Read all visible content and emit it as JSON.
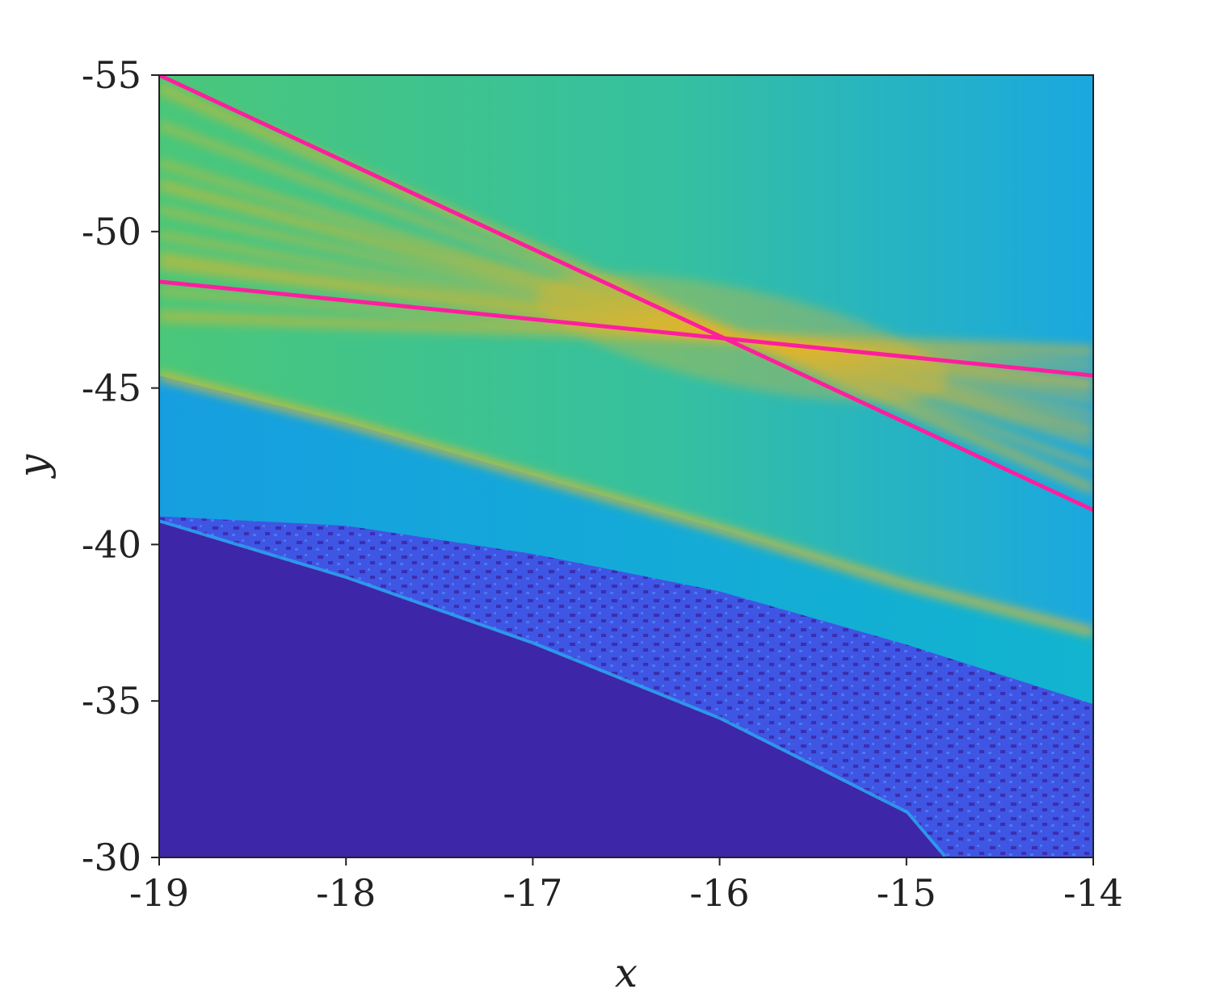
{
  "chart_data": {
    "type": "heatmap",
    "title": "",
    "xlabel": "x",
    "ylabel": "y",
    "xlim": [
      -19,
      -14
    ],
    "ylim": [
      -55,
      -30
    ],
    "y_inverted": true,
    "x_ticks": [
      -19,
      -18,
      -17,
      -16,
      -15,
      -14
    ],
    "x_tick_labels": [
      "-19",
      "-18",
      "-17",
      "-16",
      "-15",
      "-14"
    ],
    "y_ticks": [
      -55,
      -50,
      -45,
      -40,
      -35,
      -30
    ],
    "y_tick_labels": [
      "-55",
      "-50",
      "-45",
      "-40",
      "-35",
      "-30"
    ],
    "grid": false,
    "colormap": "parula",
    "colors": {
      "low": "#3e26a8",
      "low_mid": "#3f51e0",
      "mid": "#12b0d6",
      "mid_high": "#4ac77a",
      "high": "#e3b528",
      "overlay_line": "#ff1e9e"
    },
    "regions": [
      {
        "name": "dark-lower-region",
        "level": "low",
        "boundary_x": [
          -19,
          -18,
          -17,
          -16,
          -15,
          -14.8
        ],
        "boundary_y": [
          -40.7,
          -38.9,
          -36.8,
          -34.4,
          -31.4,
          -30
        ]
      },
      {
        "name": "speckled-band",
        "level": "low_mid",
        "upper_boundary_x": [
          -19,
          -18,
          -17,
          -16,
          -15,
          -14
        ],
        "upper_boundary_y": [
          -40.9,
          -40.6,
          -39.7,
          -38.5,
          -36.8,
          -34.9
        ]
      },
      {
        "name": "cyan-band",
        "level": "mid",
        "upper_boundary_x": [
          -19,
          -18,
          -17,
          -16,
          -15,
          -14
        ],
        "upper_boundary_y": [
          -45.4,
          -43.9,
          -42.2,
          -40.5,
          -38.7,
          -37.2
        ]
      },
      {
        "name": "green-yellow-region",
        "level": "mid_high"
      }
    ],
    "overlay_lines": [
      {
        "name": "steep-line",
        "x": [
          -19,
          -14
        ],
        "y": [
          -55,
          -41.1
        ]
      },
      {
        "name": "shallow-line",
        "x": [
          -19,
          -14
        ],
        "y": [
          -48.4,
          -45.4
        ]
      }
    ],
    "intersection": {
      "x": -15.88,
      "y": -46.6
    }
  }
}
